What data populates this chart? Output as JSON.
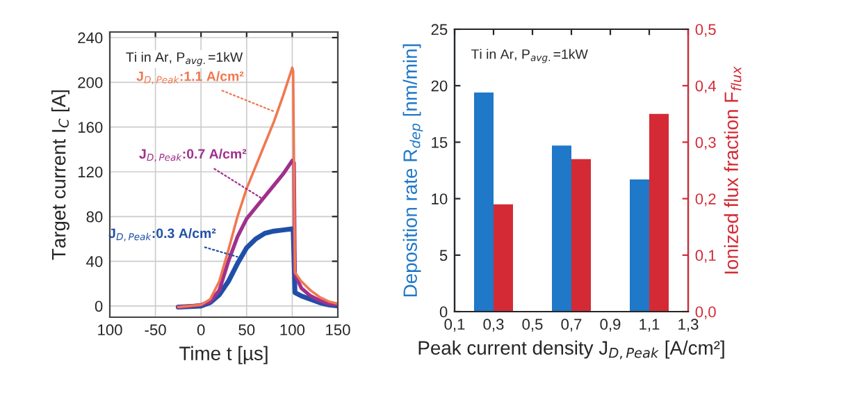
{
  "chart_data": [
    {
      "type": "line",
      "xlabel": "Time t [µs]",
      "ylabel": "Target current I$_{C}$ [A]",
      "xlim": [
        -100,
        150
      ],
      "xticks": [
        {
          "value": -100,
          "label": "100"
        },
        -50,
        0,
        50,
        100,
        150
      ],
      "ylim": [
        -10,
        245
      ],
      "yticks": [
        0,
        40,
        80,
        120,
        160,
        200,
        240
      ],
      "grid": true,
      "series": [
        {
          "color": "#1f4fa8",
          "x": [
            -25,
            0,
            10,
            20,
            30,
            40,
            50,
            60,
            70,
            80,
            90,
            100,
            101,
            103,
            110,
            120,
            130,
            140,
            150
          ],
          "values": [
            -1,
            0,
            3,
            10,
            22,
            38,
            52,
            60,
            65,
            67,
            68,
            69,
            69,
            12,
            9,
            6,
            3,
            1,
            0
          ]
        },
        {
          "color": "#a0308c",
          "x": [
            -25,
            0,
            10,
            20,
            30,
            40,
            50,
            60,
            70,
            80,
            90,
            100,
            102,
            103,
            110,
            120,
            130,
            140,
            150
          ],
          "values": [
            -1,
            1,
            4,
            14,
            40,
            62,
            78,
            88,
            98,
            108,
            118,
            130,
            128,
            28,
            16,
            9,
            5,
            2,
            1
          ]
        },
        {
          "color": "#f07850",
          "x": [
            -25,
            0,
            10,
            20,
            30,
            40,
            50,
            60,
            70,
            80,
            90,
            100,
            101,
            103,
            110,
            120,
            130,
            140,
            150
          ],
          "values": [
            -1,
            1,
            6,
            22,
            50,
            80,
            105,
            125,
            145,
            165,
            188,
            213,
            210,
            30,
            22,
            14,
            8,
            4,
            2
          ]
        }
      ],
      "annotations": [
        "Ti in Ar, P$_{avg.}$=1kW",
        {
          "text": "J$_{D,Peak}$:0.3 A/cm²",
          "x": 44,
          "y": 43
        },
        {
          "text": "J$_{D,Peak}$:0.7 A/cm²",
          "x": 69,
          "y": 95
        },
        {
          "text": "J$_{D,Peak}$:1.1 A/cm²",
          "x": 83,
          "y": 173
        }
      ]
    },
    {
      "type": "bar",
      "xlabel": "Peak current density J$_{D,Peak}$ [A/cm²]",
      "ylabel": "Deposition rate R$_{dep}$ [nm/min]",
      "y2label": "Ionized flux fraction F$_{flux}$",
      "xlim": [
        0.1,
        1.3
      ],
      "xticks": [
        {
          "value": 0.1,
          "label": "0,1"
        },
        {
          "value": 0.3,
          "label": "0,3"
        },
        {
          "value": 0.5,
          "label": "0,5"
        },
        {
          "value": 0.7,
          "label": "0,7"
        },
        {
          "value": 0.9,
          "label": "0,9"
        },
        {
          "value": 1.1,
          "label": "1,1"
        },
        {
          "value": 1.3,
          "label": "1,3"
        }
      ],
      "ylim": [
        0,
        25
      ],
      "yticks": [
        0,
        5,
        10,
        15,
        20,
        25
      ],
      "y2lim": [
        0,
        0.5
      ],
      "y2ticks": [
        {
          "value": 0,
          "label": "0,0"
        },
        {
          "value": 0.1,
          "label": "0,1"
        },
        {
          "value": 0.2,
          "label": "0,2"
        },
        {
          "value": 0.3,
          "label": "0,3"
        },
        {
          "value": 0.4,
          "label": "0,4"
        },
        {
          "value": 0.5,
          "label": "0,5"
        }
      ],
      "grid": false,
      "series": [
        {
          "color": "#1f78c8",
          "x": [
            0.3,
            0.7,
            1.1
          ],
          "values": [
            19.4,
            14.7,
            11.7
          ]
        },
        {
          "color": "#d42a35",
          "axis": "y2",
          "x": [
            0.3,
            0.7,
            1.1
          ],
          "values": [
            0.19,
            0.27,
            0.35
          ]
        }
      ],
      "annotations": [
        "Ti in Ar, P$_{avg.}$=1kW"
      ]
    }
  ]
}
